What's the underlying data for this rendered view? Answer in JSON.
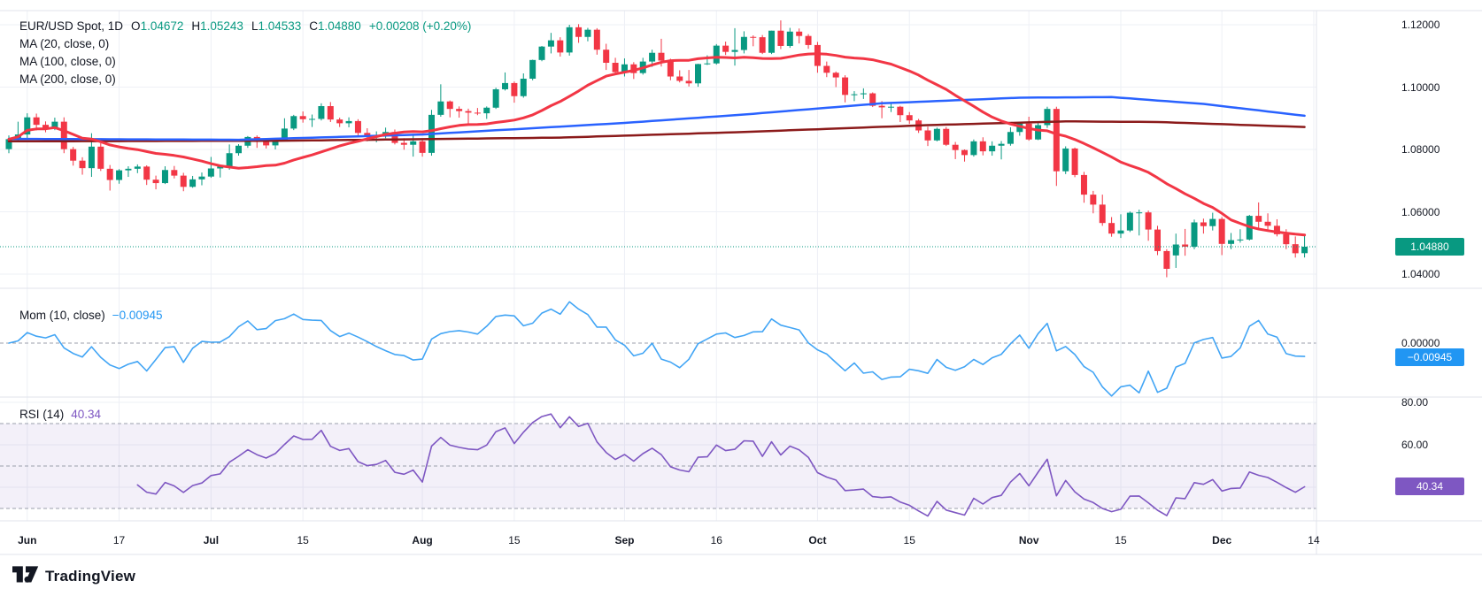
{
  "header": {
    "title": "EUR/USD Spot, 1D",
    "ohlc": [
      {
        "label": "O",
        "value": "1.04672"
      },
      {
        "label": "H",
        "value": "1.05243"
      },
      {
        "label": "L",
        "value": "1.04533"
      },
      {
        "label": "C",
        "value": "1.04880"
      }
    ],
    "change": "+0.00208 (+0.20%)",
    "ma_rows": [
      "MA (20, close, 0)",
      "MA (100, close, 0)",
      "MA (200, close, 0)"
    ]
  },
  "mom_row": {
    "name": "Mom (10, close)",
    "value": "−0.00945"
  },
  "rsi_row": {
    "name": "RSI (14)",
    "value": "40.34"
  },
  "axes": {
    "price_ticks": [
      {
        "label": "1.12000",
        "value": 1.12
      },
      {
        "label": "1.10000",
        "value": 1.1
      },
      {
        "label": "1.08000",
        "value": 1.08
      },
      {
        "label": "1.06000",
        "value": 1.06
      },
      {
        "label": "1.04000",
        "value": 1.04
      }
    ],
    "price_badge": {
      "label": "1.04880",
      "value": 1.0488,
      "color": "#089981"
    },
    "mom_ticks": [
      {
        "label": "0.00000",
        "value": 0
      }
    ],
    "mom_badge": {
      "label": "−0.00945",
      "value": -0.00945,
      "color": "#2196f3"
    },
    "rsi_ticks": [
      {
        "label": "80.00",
        "value": 80
      },
      {
        "label": "60.00",
        "value": 60
      }
    ],
    "rsi_badge": {
      "label": "40.34",
      "value": 40.34,
      "color": "#7e57c2"
    },
    "date_ticks": [
      {
        "label": "Jun",
        "i": 2,
        "bold": true
      },
      {
        "label": "17",
        "i": 12,
        "bold": false
      },
      {
        "label": "Jul",
        "i": 22,
        "bold": true
      },
      {
        "label": "15",
        "i": 32,
        "bold": false
      },
      {
        "label": "Aug",
        "i": 45,
        "bold": true
      },
      {
        "label": "15",
        "i": 55,
        "bold": false
      },
      {
        "label": "Sep",
        "i": 67,
        "bold": true
      },
      {
        "label": "16",
        "i": 77,
        "bold": false
      },
      {
        "label": "Oct",
        "i": 88,
        "bold": true
      },
      {
        "label": "15",
        "i": 98,
        "bold": false
      },
      {
        "label": "Nov",
        "i": 111,
        "bold": true
      },
      {
        "label": "15",
        "i": 121,
        "bold": false
      },
      {
        "label": "Dec",
        "i": 132,
        "bold": true
      },
      {
        "label": "14",
        "i": 142,
        "bold": false
      }
    ]
  },
  "colors": {
    "up": "#089981",
    "down": "#f23645",
    "ma20": "#f23645",
    "ma100": "#2962ff",
    "ma200": "#8b1a1a",
    "momentum": "#42a5f5",
    "rsi": "#7e57c2",
    "rsi_band": "rgba(126,87,194,0.09)",
    "grid": "#eef0f6",
    "border": "#e0e3eb",
    "dashed": "#9b9fab",
    "current_price": "#089981",
    "text": "#131722"
  },
  "footer": {
    "logo_text": "TradingView"
  },
  "chart_data": {
    "type": "candlestick",
    "symbol": "EUR/USD Spot",
    "interval": "1D",
    "title": "EUR/USD Spot, 1D with MA(20), MA(100), MA(200), Momentum(10), RSI(14)",
    "last": {
      "open": 1.04672,
      "high": 1.05243,
      "low": 1.04533,
      "close": 1.0488,
      "change_abs": 0.00208,
      "change_pct": 0.2
    },
    "y_axis": {
      "ticks": [
        1.12,
        1.1,
        1.08,
        1.06,
        1.04
      ],
      "current_price": 1.0488
    },
    "momentum": {
      "period": 10,
      "last": -0.00945,
      "zero_line": 0
    },
    "rsi": {
      "period": 14,
      "last": 40.34,
      "upper_band": 70,
      "middle_band": 50,
      "lower_band": 30,
      "axis_ticks": [
        80,
        60,
        40
      ]
    },
    "candles": [
      [
        1.0801,
        1.0845,
        1.0788,
        1.0833
      ],
      [
        1.0833,
        1.0889,
        1.0825,
        1.0848
      ],
      [
        1.0848,
        1.0916,
        1.0834,
        1.0903
      ],
      [
        1.0903,
        1.0915,
        1.0861,
        1.0879
      ],
      [
        1.0879,
        1.089,
        1.0855,
        1.0868
      ],
      [
        1.0868,
        1.0902,
        1.0862,
        1.0889
      ],
      [
        1.0889,
        1.0903,
        1.0788,
        1.0801
      ],
      [
        1.0801,
        1.0808,
        1.0748,
        1.0764
      ],
      [
        1.0764,
        1.0775,
        1.0719,
        1.074
      ],
      [
        1.074,
        1.0852,
        1.0712,
        1.0809
      ],
      [
        1.0809,
        1.082,
        1.0731,
        1.0738
      ],
      [
        1.0738,
        1.075,
        1.0668,
        1.0702
      ],
      [
        1.0702,
        1.0737,
        1.069,
        1.0733
      ],
      [
        1.0733,
        1.0746,
        1.0712,
        1.0738
      ],
      [
        1.0738,
        1.0752,
        1.0724,
        1.0745
      ],
      [
        1.0745,
        1.0749,
        1.0686,
        1.0703
      ],
      [
        1.0703,
        1.0716,
        1.0672,
        1.0692
      ],
      [
        1.0692,
        1.0746,
        1.0689,
        1.0734
      ],
      [
        1.0734,
        1.0747,
        1.0707,
        1.0716
      ],
      [
        1.0716,
        1.0725,
        1.0666,
        1.068
      ],
      [
        1.068,
        1.0715,
        1.0677,
        1.0704
      ],
      [
        1.0704,
        1.0726,
        1.0685,
        1.0713
      ],
      [
        1.0713,
        1.0776,
        1.0709,
        1.0739
      ],
      [
        1.0739,
        1.0748,
        1.071,
        1.0745
      ],
      [
        1.0745,
        1.0816,
        1.0735,
        1.0788
      ],
      [
        1.0788,
        1.0817,
        1.078,
        1.0812
      ],
      [
        1.0812,
        1.0843,
        1.0805,
        1.084
      ],
      [
        1.084,
        1.0845,
        1.0805,
        1.0824
      ],
      [
        1.0824,
        1.0833,
        1.0803,
        1.0813
      ],
      [
        1.0813,
        1.0834,
        1.08,
        1.083
      ],
      [
        1.083,
        1.09,
        1.0827,
        1.0867
      ],
      [
        1.0867,
        1.0911,
        1.0862,
        1.0907
      ],
      [
        1.0907,
        1.0922,
        1.0886,
        1.0897
      ],
      [
        1.0897,
        1.0912,
        1.0872,
        1.0898
      ],
      [
        1.0898,
        1.0948,
        1.0893,
        1.0939
      ],
      [
        1.0939,
        1.0952,
        1.0888,
        1.0896
      ],
      [
        1.0896,
        1.0902,
        1.0872,
        1.0884
      ],
      [
        1.0884,
        1.0903,
        1.0871,
        1.0891
      ],
      [
        1.0891,
        1.0897,
        1.0843,
        1.0853
      ],
      [
        1.0853,
        1.0868,
        1.0826,
        1.084
      ],
      [
        1.084,
        1.0858,
        1.0823,
        1.0844
      ],
      [
        1.0844,
        1.087,
        1.0836,
        1.0856
      ],
      [
        1.0856,
        1.0864,
        1.0816,
        1.0821
      ],
      [
        1.0821,
        1.0836,
        1.0799,
        1.0815
      ],
      [
        1.0815,
        1.0848,
        1.0777,
        1.0826
      ],
      [
        1.0826,
        1.0833,
        1.0777,
        1.0789
      ],
      [
        1.0789,
        1.0927,
        1.078,
        1.0911
      ],
      [
        1.0911,
        1.1009,
        1.0905,
        1.0954
      ],
      [
        1.0954,
        1.0957,
        1.0903,
        1.093
      ],
      [
        1.093,
        1.0938,
        1.0902,
        1.0923
      ],
      [
        1.0923,
        1.0931,
        1.0881,
        1.0918
      ],
      [
        1.0918,
        1.0933,
        1.091,
        1.0916
      ],
      [
        1.0916,
        1.0938,
        1.0898,
        1.0934
      ],
      [
        1.0934,
        1.0998,
        1.093,
        1.0993
      ],
      [
        1.0993,
        1.1047,
        1.0989,
        1.1013
      ],
      [
        1.1013,
        1.1018,
        1.095,
        1.0971
      ],
      [
        1.0971,
        1.1044,
        1.0966,
        1.1027
      ],
      [
        1.1027,
        1.1088,
        1.1022,
        1.1087
      ],
      [
        1.1087,
        1.1132,
        1.1083,
        1.113
      ],
      [
        1.113,
        1.1174,
        1.1108,
        1.115
      ],
      [
        1.115,
        1.116,
        1.1098,
        1.1111
      ],
      [
        1.1111,
        1.12,
        1.1101,
        1.1192
      ],
      [
        1.1192,
        1.1202,
        1.1142,
        1.1161
      ],
      [
        1.1161,
        1.119,
        1.1147,
        1.1184
      ],
      [
        1.1184,
        1.1189,
        1.1104,
        1.112
      ],
      [
        1.112,
        1.1139,
        1.1055,
        1.1078
      ],
      [
        1.1078,
        1.1094,
        1.1042,
        1.1048
      ],
      [
        1.1048,
        1.1092,
        1.1034,
        1.1073
      ],
      [
        1.1073,
        1.108,
        1.1026,
        1.1045
      ],
      [
        1.1045,
        1.1094,
        1.104,
        1.1082
      ],
      [
        1.1082,
        1.112,
        1.1065,
        1.111
      ],
      [
        1.111,
        1.1155,
        1.1066,
        1.1085
      ],
      [
        1.1085,
        1.1091,
        1.1022,
        1.1034
      ],
      [
        1.1034,
        1.1054,
        1.1015,
        1.102
      ],
      [
        1.102,
        1.1055,
        1.1002,
        1.1012
      ],
      [
        1.1012,
        1.1075,
        1.1001,
        1.1074
      ],
      [
        1.1074,
        1.1102,
        1.1071,
        1.1076
      ],
      [
        1.1076,
        1.1138,
        1.1072,
        1.1133
      ],
      [
        1.1133,
        1.1146,
        1.1103,
        1.1113
      ],
      [
        1.1113,
        1.1189,
        1.1069,
        1.1119
      ],
      [
        1.1119,
        1.1179,
        1.1108,
        1.1161
      ],
      [
        1.1161,
        1.1166,
        1.1131,
        1.116
      ],
      [
        1.116,
        1.1167,
        1.1106,
        1.111
      ],
      [
        1.111,
        1.1181,
        1.1106,
        1.1181
      ],
      [
        1.1181,
        1.1214,
        1.1122,
        1.1132
      ],
      [
        1.1132,
        1.119,
        1.1126,
        1.1178
      ],
      [
        1.1178,
        1.1188,
        1.114,
        1.1164
      ],
      [
        1.1164,
        1.117,
        1.1123,
        1.1135
      ],
      [
        1.1135,
        1.1145,
        1.1046,
        1.1068
      ],
      [
        1.1068,
        1.1082,
        1.1032,
        1.1046
      ],
      [
        1.1046,
        1.105,
        1.1,
        1.1031
      ],
      [
        1.1031,
        1.1038,
        1.0951,
        1.0975
      ],
      [
        1.0975,
        1.0987,
        1.0955,
        1.0977
      ],
      [
        1.0977,
        1.0996,
        1.0962,
        1.098
      ],
      [
        1.098,
        1.0983,
        1.0936,
        1.094
      ],
      [
        1.094,
        1.0955,
        1.09,
        1.0935
      ],
      [
        1.0935,
        1.0948,
        1.092,
        1.0937
      ],
      [
        1.0937,
        1.094,
        1.0888,
        1.091
      ],
      [
        1.091,
        1.092,
        1.0882,
        1.0893
      ],
      [
        1.0893,
        1.0898,
        1.0853,
        1.0861
      ],
      [
        1.0861,
        1.0873,
        1.0811,
        1.0829
      ],
      [
        1.0829,
        1.087,
        1.0826,
        1.0866
      ],
      [
        1.0866,
        1.0872,
        1.0811,
        1.0815
      ],
      [
        1.0815,
        1.0824,
        1.0769,
        1.0798
      ],
      [
        1.0798,
        1.08,
        1.0761,
        1.0782
      ],
      [
        1.0782,
        1.0832,
        1.0777,
        1.0826
      ],
      [
        1.0826,
        1.0839,
        1.0781,
        1.0794
      ],
      [
        1.0794,
        1.0826,
        1.078,
        1.0812
      ],
      [
        1.0812,
        1.0827,
        1.0768,
        1.0818
      ],
      [
        1.0818,
        1.0871,
        1.0812,
        1.0856
      ],
      [
        1.0856,
        1.0888,
        1.0844,
        1.0883
      ],
      [
        1.0883,
        1.0905,
        1.0828,
        1.0832
      ],
      [
        1.0832,
        1.0888,
        1.083,
        1.0878
      ],
      [
        1.0878,
        1.0937,
        1.0869,
        1.093
      ],
      [
        1.093,
        1.0937,
        1.0683,
        1.073
      ],
      [
        1.073,
        1.081,
        1.0721,
        1.0803
      ],
      [
        1.0803,
        1.0806,
        1.0711,
        1.0718
      ],
      [
        1.0718,
        1.0728,
        1.0629,
        1.0655
      ],
      [
        1.0655,
        1.0667,
        1.0595,
        1.0623
      ],
      [
        1.0623,
        1.0655,
        1.0555,
        1.0564
      ],
      [
        1.0564,
        1.0583,
        1.052,
        1.053
      ],
      [
        1.053,
        1.0592,
        1.0516,
        1.054
      ],
      [
        1.054,
        1.0601,
        1.0535,
        1.0597
      ],
      [
        1.0597,
        1.0607,
        1.0524,
        1.0598
      ],
      [
        1.0598,
        1.0604,
        1.0507,
        1.0543
      ],
      [
        1.0543,
        1.0555,
        1.0461,
        1.0474
      ],
      [
        1.0474,
        1.048,
        1.039,
        1.0417
      ],
      [
        1.046,
        1.053,
        1.042,
        1.0495
      ],
      [
        1.0495,
        1.0545,
        1.0459,
        1.0488
      ],
      [
        1.0488,
        1.0575,
        1.048,
        1.0566
      ],
      [
        1.0566,
        1.0578,
        1.053,
        1.0554
      ],
      [
        1.0554,
        1.0597,
        1.054,
        1.0577
      ],
      [
        1.0577,
        1.0583,
        1.0461,
        1.0497
      ],
      [
        1.0497,
        1.0532,
        1.048,
        1.0509
      ],
      [
        1.0509,
        1.0544,
        1.0501,
        1.0511
      ],
      [
        1.0511,
        1.059,
        1.0508,
        1.0587
      ],
      [
        1.0587,
        1.063,
        1.0543,
        1.0568
      ],
      [
        1.0568,
        1.0595,
        1.0536,
        1.0555
      ],
      [
        1.0555,
        1.0576,
        1.0521,
        1.0528
      ],
      [
        1.0528,
        1.0544,
        1.048,
        1.0496
      ],
      [
        1.0496,
        1.0521,
        1.0453,
        1.0467
      ],
      [
        1.04672,
        1.05243,
        1.04533,
        1.0488
      ]
    ],
    "ma100_points": [
      [
        0,
        1.0834
      ],
      [
        25,
        1.0831
      ],
      [
        45,
        1.0848
      ],
      [
        67,
        1.0885
      ],
      [
        80,
        1.0912
      ],
      [
        95,
        1.0948
      ],
      [
        110,
        1.0966
      ],
      [
        120,
        1.0968
      ],
      [
        130,
        1.0946
      ],
      [
        141,
        1.0908
      ]
    ],
    "ma200_points": [
      [
        0,
        1.0826
      ],
      [
        30,
        1.0828
      ],
      [
        60,
        1.0838
      ],
      [
        80,
        1.0856
      ],
      [
        100,
        1.0878
      ],
      [
        115,
        1.089
      ],
      [
        125,
        1.0888
      ],
      [
        141,
        1.0872
      ]
    ]
  }
}
